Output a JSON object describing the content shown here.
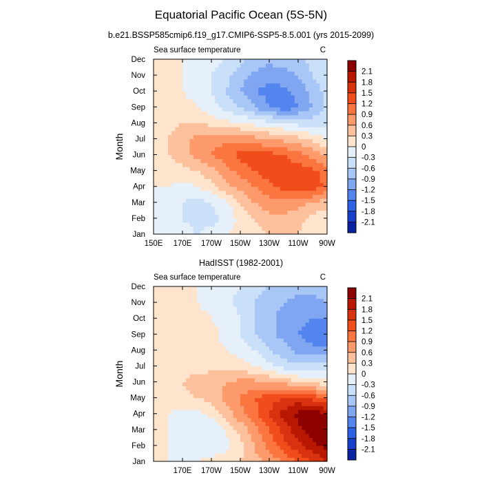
{
  "title": "Equatorial Pacific Ocean (5S-5N)",
  "colorbar": {
    "labels": [
      "2.1",
      "1.8",
      "1.5",
      "1.2",
      "0.9",
      "0.6",
      "0.3",
      "0",
      "-0.3",
      "-0.6",
      "-0.9",
      "-1.2",
      "-1.5",
      "-1.8",
      "-2.1"
    ],
    "colors": [
      "#8c0000",
      "#b81800",
      "#d83210",
      "#f04c1c",
      "#fa7540",
      "#fd9a6c",
      "#fdc09c",
      "#fee4cc",
      "#e6f0fa",
      "#cadff8",
      "#a8c6f6",
      "#80a6f2",
      "#5485ee",
      "#2e62e6",
      "#1840cc",
      "#0a22a4"
    ]
  },
  "chart_data": [
    {
      "type": "heatmap",
      "title": "b.e21.BSSP585cmip6.f19_g17.CMIP6-SSP5-8.5.001 (yrs 2015-2099)",
      "left_label": "Sea surface temperature",
      "right_label": "C",
      "xlabel": "",
      "ylabel": "Month",
      "xticks": [
        "150E",
        "170E",
        "170W",
        "150W",
        "130W",
        "110W",
        "90W"
      ],
      "yticks": [
        "Jan",
        "Feb",
        "Mar",
        "Apr",
        "May",
        "Jun",
        "Jul",
        "Aug",
        "Sep",
        "Oct",
        "Nov",
        "Dec"
      ],
      "x_lon": [
        150,
        160,
        170,
        180,
        190,
        200,
        210,
        220,
        230,
        240,
        250,
        260,
        270
      ],
      "months": [
        "Jan",
        "Feb",
        "Mar",
        "Apr",
        "May",
        "Jun",
        "Jul",
        "Aug",
        "Sep",
        "Oct",
        "Nov",
        "Dec"
      ],
      "values": [
        [
          0.0,
          0.0,
          -0.2,
          -0.3,
          -0.2,
          0.0,
          0.1,
          0.2,
          0.3,
          0.4,
          0.3,
          0.1,
          0.0
        ],
        [
          0.0,
          -0.1,
          -0.3,
          -0.4,
          -0.4,
          -0.2,
          0.1,
          0.3,
          0.5,
          0.5,
          0.4,
          0.2,
          0.1
        ],
        [
          0.0,
          -0.1,
          -0.3,
          -0.4,
          -0.3,
          -0.1,
          0.3,
          0.6,
          0.8,
          0.8,
          0.7,
          0.6,
          0.4
        ],
        [
          0.0,
          0.0,
          -0.1,
          0.0,
          0.2,
          0.5,
          0.7,
          0.9,
          1.1,
          1.3,
          1.4,
          1.4,
          1.1
        ],
        [
          0.0,
          0.1,
          0.2,
          0.3,
          0.5,
          0.8,
          1.0,
          1.2,
          1.4,
          1.4,
          1.4,
          1.3,
          1.0
        ],
        [
          0.1,
          0.3,
          0.5,
          0.7,
          0.9,
          1.1,
          1.3,
          1.4,
          1.3,
          1.2,
          1.0,
          0.8,
          0.5
        ],
        [
          0.1,
          0.3,
          0.5,
          0.7,
          0.8,
          0.8,
          0.8,
          0.7,
          0.6,
          0.5,
          0.4,
          0.2,
          0.0
        ],
        [
          0.1,
          0.2,
          0.3,
          0.3,
          0.2,
          0.1,
          0.0,
          -0.1,
          -0.2,
          -0.3,
          -0.4,
          -0.4,
          -0.4
        ],
        [
          0.1,
          0.1,
          0.1,
          0.0,
          -0.2,
          -0.4,
          -0.6,
          -0.9,
          -1.2,
          -1.4,
          -1.2,
          -0.9,
          -0.5
        ],
        [
          0.2,
          0.1,
          0.0,
          -0.1,
          -0.3,
          -0.6,
          -0.9,
          -1.2,
          -1.3,
          -1.3,
          -1.1,
          -0.8,
          -0.5
        ],
        [
          0.3,
          0.1,
          0.0,
          -0.1,
          -0.3,
          -0.5,
          -0.8,
          -1.0,
          -1.1,
          -1.0,
          -0.9,
          -0.6,
          -0.4
        ],
        [
          0.3,
          0.2,
          0.0,
          -0.1,
          -0.2,
          -0.3,
          -0.5,
          -0.7,
          -0.8,
          -0.8,
          -0.7,
          -0.5,
          -0.3
        ]
      ],
      "levels": [
        -2.1,
        -1.8,
        -1.5,
        -1.2,
        -0.9,
        -0.6,
        -0.3,
        0,
        0.3,
        0.6,
        0.9,
        1.2,
        1.5,
        1.8,
        2.1
      ]
    },
    {
      "type": "heatmap",
      "title": "HadISST (1982-2001)",
      "left_label": "Sea surface temperature",
      "right_label": "C",
      "xlabel": "",
      "ylabel": "Month",
      "xticks": [
        "170E",
        "170W",
        "150W",
        "130W",
        "110W",
        "90W"
      ],
      "yticks": [
        "Jan",
        "Feb",
        "Mar",
        "Apr",
        "May",
        "Jun",
        "Jul",
        "Aug",
        "Sep",
        "Oct",
        "Nov",
        "Dec"
      ],
      "x_lon": [
        150,
        160,
        170,
        180,
        190,
        200,
        210,
        220,
        230,
        240,
        250,
        260,
        270
      ],
      "months": [
        "Jan",
        "Feb",
        "Mar",
        "Apr",
        "May",
        "Jun",
        "Jul",
        "Aug",
        "Sep",
        "Oct",
        "Nov",
        "Dec"
      ],
      "values": [
        [
          0.0,
          0.0,
          0.0,
          0.0,
          0.1,
          0.2,
          0.3,
          0.5,
          0.7,
          0.9,
          1.2,
          1.5,
          1.8
        ],
        [
          0.0,
          0.0,
          -0.1,
          -0.2,
          -0.2,
          -0.1,
          0.2,
          0.6,
          1.0,
          1.4,
          1.7,
          2.0,
          2.2
        ],
        [
          0.0,
          0.0,
          -0.2,
          -0.3,
          -0.3,
          0.0,
          0.4,
          0.8,
          1.2,
          1.6,
          2.0,
          2.3,
          2.4
        ],
        [
          0.0,
          0.0,
          -0.1,
          -0.1,
          0.1,
          0.4,
          0.8,
          1.1,
          1.5,
          1.9,
          2.2,
          2.3,
          2.1
        ],
        [
          0.0,
          0.1,
          0.2,
          0.3,
          0.4,
          0.7,
          0.9,
          1.2,
          1.4,
          1.5,
          1.6,
          1.4,
          1.1
        ],
        [
          0.0,
          0.1,
          0.3,
          0.4,
          0.5,
          0.6,
          0.7,
          0.7,
          0.6,
          0.5,
          0.3,
          0.2,
          0.1
        ],
        [
          0.0,
          0.1,
          0.2,
          0.2,
          0.2,
          0.2,
          0.1,
          0.0,
          -0.2,
          -0.4,
          -0.5,
          -0.5,
          -0.5
        ],
        [
          0.0,
          0.1,
          0.1,
          0.2,
          0.1,
          0.0,
          -0.1,
          -0.3,
          -0.6,
          -0.8,
          -1.0,
          -1.1,
          -1.1
        ],
        [
          0.0,
          0.1,
          0.2,
          0.3,
          0.1,
          -0.1,
          -0.3,
          -0.6,
          -0.8,
          -1.0,
          -1.2,
          -1.4,
          -1.4
        ],
        [
          0.0,
          0.1,
          0.1,
          0.1,
          0.0,
          -0.1,
          -0.3,
          -0.6,
          -0.8,
          -1.0,
          -1.1,
          -1.2,
          -1.2
        ],
        [
          0.0,
          0.1,
          0.1,
          0.0,
          -0.1,
          -0.2,
          -0.4,
          -0.6,
          -0.8,
          -0.9,
          -1.0,
          -1.0,
          -0.9
        ],
        [
          0.0,
          0.1,
          0.1,
          0.0,
          -0.1,
          -0.2,
          -0.3,
          -0.5,
          -0.6,
          -0.7,
          -0.8,
          -0.8,
          -0.7
        ]
      ],
      "levels": [
        -2.1,
        -1.8,
        -1.5,
        -1.2,
        -0.9,
        -0.6,
        -0.3,
        0,
        0.3,
        0.6,
        0.9,
        1.2,
        1.5,
        1.8,
        2.1
      ]
    }
  ]
}
